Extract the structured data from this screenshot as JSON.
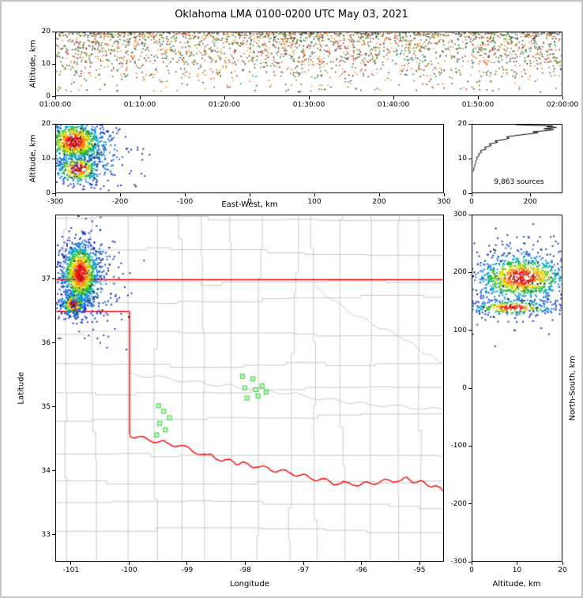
{
  "title": "Oklahoma LMA 0100-0200 UTC May 03, 2021",
  "colors": {
    "background": "#ffffff",
    "frame": "#c4c4c4",
    "axis": "#000000",
    "county_line": "#c9c9c9",
    "state_border": "#ff0000",
    "station_fill": "#ccffcc",
    "station_edge": "#33cc33",
    "histogram_line": "#000000"
  },
  "chart_data": [
    {
      "id": "time_height",
      "type": "scatter",
      "xlabel": "",
      "ylabel": "Altitude, km",
      "xlim": [
        0,
        3600
      ],
      "ylim": [
        0,
        20
      ],
      "xticks": [
        {
          "v": 0,
          "label": "01:00:00"
        },
        {
          "v": 600,
          "label": "01:10:00"
        },
        {
          "v": 1200,
          "label": "01:20:00"
        },
        {
          "v": 1800,
          "label": "01:30:00"
        },
        {
          "v": 2400,
          "label": "01:40:00"
        },
        {
          "v": 3000,
          "label": "01:50:00"
        },
        {
          "v": 3600,
          "label": "02:00:00"
        }
      ],
      "yticks": [
        {
          "v": 0,
          "label": "0"
        },
        {
          "v": 10,
          "label": "10"
        },
        {
          "v": 20,
          "label": "20"
        }
      ],
      "points": {
        "count": 2600,
        "clump_centers": [
          180,
          540,
          950,
          1400,
          1750,
          2150,
          2600,
          3050,
          3400
        ],
        "clump_fraction": 0.38,
        "clump_sigma": 130,
        "bands": [
          {
            "alt": [
              14,
              20
            ],
            "weight": 0.62,
            "bias_top": true
          },
          {
            "alt": [
              10,
              14
            ],
            "weight": 0.22
          },
          {
            "alt": [
              6,
              10
            ],
            "weight": 0.11
          },
          {
            "alt": [
              1,
              6
            ],
            "weight": 0.05
          }
        ],
        "palette": [
          {
            "color": "#b22222",
            "weight": 0.16
          },
          {
            "color": "#d2691e",
            "weight": 0.2
          },
          {
            "color": "#ff8c00",
            "weight": 0.13
          },
          {
            "color": "#228b22",
            "weight": 0.18
          },
          {
            "color": "#2f4f2f",
            "weight": 0.08
          },
          {
            "color": "#333333",
            "weight": 0.15
          },
          {
            "color": "#008080",
            "weight": 0.05
          },
          {
            "color": "#bdb76b",
            "weight": 0.05
          }
        ]
      }
    },
    {
      "id": "east_west_altitude",
      "type": "scatter",
      "xlabel": "East-West, km",
      "ylabel": "Altitude, km",
      "xlim": [
        -300,
        300
      ],
      "ylim": [
        0,
        20
      ],
      "xticks": [
        {
          "v": -300,
          "label": "-300"
        },
        {
          "v": -200,
          "label": "-200"
        },
        {
          "v": -100,
          "label": "-100"
        },
        {
          "v": 0,
          "label": "0"
        },
        {
          "v": 100,
          "label": "100"
        },
        {
          "v": 200,
          "label": "200"
        },
        {
          "v": 300,
          "label": "300"
        }
      ],
      "yticks": [
        {
          "v": 0,
          "label": "0"
        },
        {
          "v": 10,
          "label": "10"
        },
        {
          "v": 20,
          "label": "20"
        }
      ],
      "clusters": [
        {
          "cx": -252,
          "cy": 12,
          "sx": 38,
          "sy": 5.5,
          "n": 280,
          "dim": 0.45
        },
        {
          "cx": -266,
          "cy": 7,
          "sx": 18,
          "sy": 2.4,
          "n": 300
        },
        {
          "cx": -272,
          "cy": 15,
          "sx": 24,
          "sy": 3.2,
          "n": 750
        }
      ]
    },
    {
      "id": "altitude_histogram",
      "type": "line",
      "xlabel": "",
      "ylabel": "",
      "xlim": [
        0,
        310
      ],
      "ylim": [
        0,
        20
      ],
      "xticks": [
        {
          "v": 0,
          "label": "0"
        },
        {
          "v": 200,
          "label": "200"
        }
      ],
      "yticks": [
        {
          "v": 0,
          "label": "0"
        },
        {
          "v": 10,
          "label": "10"
        },
        {
          "v": 20,
          "label": "20"
        }
      ],
      "annotation": "9,863 sources",
      "profile": [
        [
          6.2,
          2
        ],
        [
          6.8,
          6
        ],
        [
          7.2,
          4
        ],
        [
          7.8,
          10
        ],
        [
          8.2,
          7
        ],
        [
          8.8,
          14
        ],
        [
          9.2,
          10
        ],
        [
          9.8,
          18
        ],
        [
          10.3,
          14
        ],
        [
          10.8,
          24
        ],
        [
          11.3,
          20
        ],
        [
          11.8,
          32
        ],
        [
          12.3,
          27
        ],
        [
          12.8,
          48
        ],
        [
          13.3,
          42
        ],
        [
          13.8,
          66
        ],
        [
          14.3,
          58
        ],
        [
          14.8,
          88
        ],
        [
          15.2,
          78
        ],
        [
          15.6,
          110
        ],
        [
          16.0,
          128
        ],
        [
          16.4,
          118
        ],
        [
          16.8,
          152
        ],
        [
          17.2,
          190
        ],
        [
          17.6,
          228
        ],
        [
          17.9,
          210
        ],
        [
          18.2,
          252
        ],
        [
          18.5,
          282
        ],
        [
          18.8,
          248
        ],
        [
          19.0,
          272
        ],
        [
          19.2,
          292
        ],
        [
          19.4,
          258
        ],
        [
          19.6,
          280
        ],
        [
          19.8,
          215
        ],
        [
          20.0,
          150
        ]
      ]
    },
    {
      "id": "plan_view",
      "type": "scatter",
      "xlabel": "Longitude",
      "ylabel": "Latitude",
      "xlim": [
        -101.27,
        -94.58
      ],
      "ylim": [
        32.58,
        38.01
      ],
      "xticks": [
        {
          "v": -101,
          "label": "-101"
        },
        {
          "v": -100,
          "label": "-100"
        },
        {
          "v": -99,
          "label": "-99"
        },
        {
          "v": -98,
          "label": "-98"
        },
        {
          "v": -97,
          "label": "-97"
        },
        {
          "v": -96,
          "label": "-96"
        },
        {
          "v": -95,
          "label": "-95"
        }
      ],
      "yticks": [
        {
          "v": 33,
          "label": "33"
        },
        {
          "v": 34,
          "label": "34"
        },
        {
          "v": 35,
          "label": "35"
        },
        {
          "v": 36,
          "label": "36"
        },
        {
          "v": 37,
          "label": "37"
        }
      ],
      "state_border_segments": [
        [
          [
            -101.27,
            37.0
          ],
          [
            -94.58,
            37.0
          ]
        ],
        [
          [
            -101.27,
            36.5
          ],
          [
            -100.0,
            36.5
          ]
        ],
        [
          [
            -100.0,
            36.5
          ],
          [
            -100.0,
            34.56
          ]
        ]
      ],
      "red_river": [
        [
          -100.0,
          34.56
        ],
        [
          -99.6,
          34.47
        ],
        [
          -99.2,
          34.4
        ],
        [
          -98.7,
          34.25
        ],
        [
          -98.3,
          34.15
        ],
        [
          -98.0,
          34.1
        ],
        [
          -97.6,
          34.03
        ],
        [
          -97.2,
          33.96
        ],
        [
          -96.8,
          33.87
        ],
        [
          -96.4,
          33.8
        ],
        [
          -96.0,
          33.78
        ],
        [
          -95.6,
          33.83
        ],
        [
          -95.2,
          33.86
        ],
        [
          -94.9,
          33.8
        ],
        [
          -94.58,
          33.7
        ]
      ],
      "rivers": [
        [
          [
            -100.0,
            35.52
          ],
          [
            -99.3,
            35.44
          ],
          [
            -98.6,
            35.36
          ],
          [
            -98.0,
            35.3
          ],
          [
            -97.3,
            35.22
          ],
          [
            -96.6,
            35.12
          ],
          [
            -96.0,
            35.05
          ],
          [
            -95.3,
            35.0
          ],
          [
            -94.58,
            34.95
          ]
        ],
        [
          [
            -96.8,
            36.9
          ],
          [
            -96.3,
            36.55
          ],
          [
            -95.8,
            36.3
          ],
          [
            -95.3,
            36.1
          ],
          [
            -94.9,
            35.85
          ],
          [
            -94.58,
            35.7
          ]
        ]
      ],
      "stations": [
        [
          -98.05,
          35.48
        ],
        [
          -97.87,
          35.44
        ],
        [
          -97.71,
          35.33
        ],
        [
          -98.01,
          35.3
        ],
        [
          -97.82,
          35.27
        ],
        [
          -97.64,
          35.23
        ],
        [
          -97.97,
          35.14
        ],
        [
          -97.78,
          35.17
        ],
        [
          -99.5,
          35.02
        ],
        [
          -99.41,
          34.93
        ],
        [
          -99.31,
          34.83
        ],
        [
          -99.48,
          34.74
        ],
        [
          -99.38,
          34.64
        ],
        [
          -99.53,
          34.56
        ]
      ],
      "clusters": [
        {
          "cx": -100.75,
          "cy": 37.0,
          "sx": 0.3,
          "sy": 0.42,
          "n": 260,
          "dim": 0.45
        },
        {
          "cx": -100.97,
          "cy": 36.62,
          "sx": 0.11,
          "sy": 0.1,
          "n": 330
        },
        {
          "cx": -100.85,
          "cy": 37.1,
          "sx": 0.17,
          "sy": 0.26,
          "n": 950
        }
      ]
    },
    {
      "id": "north_south_altitude",
      "type": "scatter",
      "xlabel": "Altitude, km",
      "ylabel": "North-South, km",
      "xlim": [
        0,
        20
      ],
      "ylim": [
        -300,
        300
      ],
      "xticks": [
        {
          "v": 0,
          "label": "0"
        },
        {
          "v": 10,
          "label": "10"
        },
        {
          "v": 20,
          "label": "20"
        }
      ],
      "yticks": [
        {
          "v": 300,
          "label": "300"
        },
        {
          "v": 200,
          "label": "200"
        },
        {
          "v": 100,
          "label": "100"
        },
        {
          "v": 0,
          "label": "0"
        },
        {
          "v": -100,
          "label": "-100"
        },
        {
          "v": -200,
          "label": "-200"
        },
        {
          "v": -300,
          "label": "-300"
        }
      ],
      "clusters": [
        {
          "cx": 10,
          "cy": 185,
          "sx": 7,
          "sy": 42,
          "n": 260,
          "dim": 0.45
        },
        {
          "cx": 9,
          "cy": 140,
          "sx": 5,
          "sy": 7,
          "n": 260
        },
        {
          "cx": 11,
          "cy": 192,
          "sx": 5.5,
          "sy": 21,
          "n": 800
        }
      ]
    }
  ]
}
